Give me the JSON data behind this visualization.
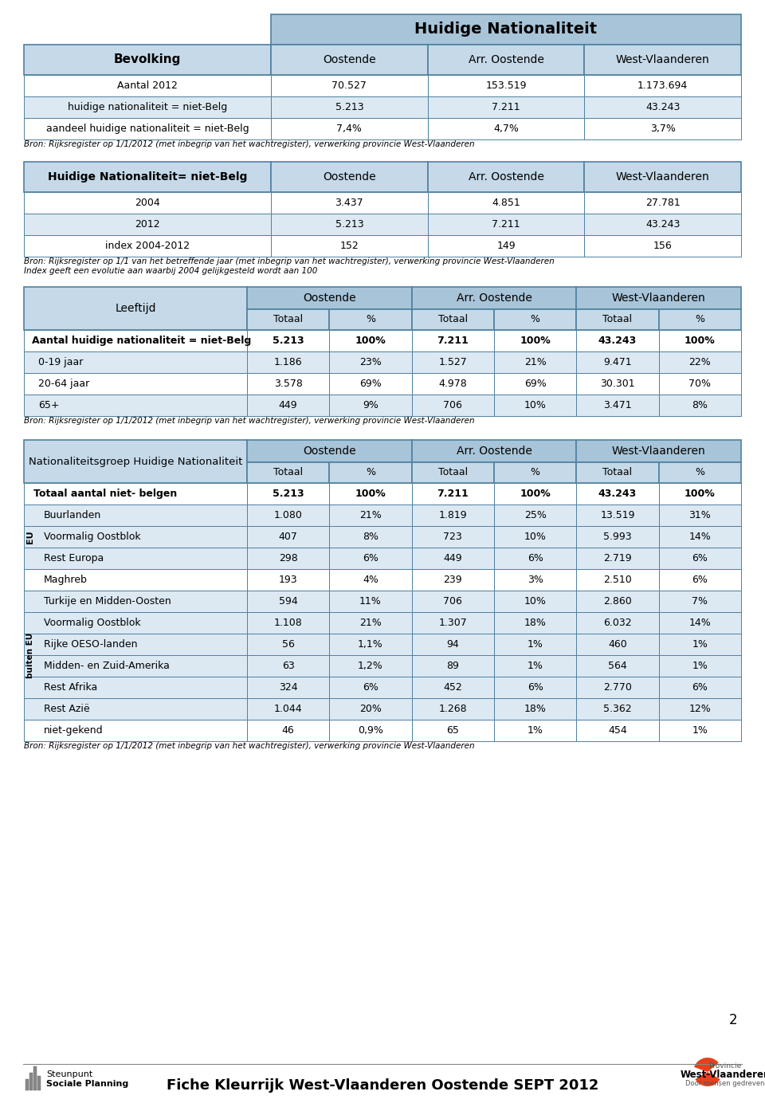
{
  "page_bg": "#ffffff",
  "header_bg": "#a8c4d8",
  "subheader_bg": "#c5d9e8",
  "row_bg_light": "#dce9f3",
  "row_bg_white": "#ffffff",
  "border_color": "#4f81a0",
  "main_title": "Huidige Nationaliteit",
  "table1_title": "Bevolking",
  "table1_cols": [
    "Oostende",
    "Arr. Oostende",
    "West-Vlaanderen"
  ],
  "table1_rows": [
    [
      "Aantal 2012",
      "70.527",
      "153.519",
      "1.173.694"
    ],
    [
      "huidige nationaliteit = niet-Belg",
      "5.213",
      "7.211",
      "43.243"
    ],
    [
      "aandeel huidige nationaliteit = niet-Belg",
      "7,4%",
      "4,7%",
      "3,7%"
    ]
  ],
  "table1_note": "Bron: Rijksregister op 1/1/2012 (met inbegrip van het wachtregister), verwerking provincie West-Vlaanderen",
  "table2_title": "Huidige Nationaliteit= niet-Belg",
  "table2_cols": [
    "Oostende",
    "Arr. Oostende",
    "West-Vlaanderen"
  ],
  "table2_rows": [
    [
      "2004",
      "3.437",
      "4.851",
      "27.781"
    ],
    [
      "2012",
      "5.213",
      "7.211",
      "43.243"
    ],
    [
      "index 2004-2012",
      "152",
      "149",
      "156"
    ]
  ],
  "table2_note": "Bron: Rijksregister op 1/1 van het betreffende jaar (met inbegrip van het wachtregister), verwerking provincie West-Vlaanderen",
  "table2_note2": "Index geeft een evolutie aan waarbij 2004 gelijkgesteld wordt aan 100",
  "table3_title": "Leeftijd",
  "table3_cols_top": [
    "Oostende",
    "Arr. Oostende",
    "West-Vlaanderen"
  ],
  "table3_cols_sub": [
    "Totaal",
    "%",
    "Totaal",
    "%",
    "Totaal",
    "%"
  ],
  "table3_rows": [
    [
      "Aantal huidige nationaliteit = niet-Belg",
      "5.213",
      "100%",
      "7.211",
      "100%",
      "43.243",
      "100%",
      "bold",
      "white"
    ],
    [
      "0-19 jaar",
      "1.186",
      "23%",
      "1.527",
      "21%",
      "9.471",
      "22%",
      "normal",
      "light"
    ],
    [
      "20-64 jaar",
      "3.578",
      "69%",
      "4.978",
      "69%",
      "30.301",
      "70%",
      "normal",
      "white"
    ],
    [
      "65+",
      "449",
      "9%",
      "706",
      "10%",
      "3.471",
      "8%",
      "normal",
      "light"
    ]
  ],
  "table3_note": "Bron: Rijksregister op 1/1/2012 (met inbegrip van het wachtregister), verwerking provincie West-Vlaanderen",
  "table4_title": "Nationaliteitsgroep Huidige Nationaliteit",
  "table4_cols_top": [
    "Oostende",
    "Arr. Oostende",
    "West-Vlaanderen"
  ],
  "table4_cols_sub": [
    "Totaal",
    "%",
    "Totaal",
    "%",
    "Totaal",
    "%"
  ],
  "table4_rows": [
    [
      "Totaal aantal niet- belgen",
      "5.213",
      "100%",
      "7.211",
      "100%",
      "43.243",
      "100%",
      "bold",
      "white"
    ],
    [
      "Buurlanden",
      "1.080",
      "21%",
      "1.819",
      "25%",
      "13.519",
      "31%",
      "normal",
      "light"
    ],
    [
      "Voormalig Oostblok",
      "407",
      "8%",
      "723",
      "10%",
      "5.993",
      "14%",
      "normal",
      "light"
    ],
    [
      "Rest Europa",
      "298",
      "6%",
      "449",
      "6%",
      "2.719",
      "6%",
      "normal",
      "light"
    ],
    [
      "Maghreb",
      "193",
      "4%",
      "239",
      "3%",
      "2.510",
      "6%",
      "normal",
      "white"
    ],
    [
      "Turkije en Midden-Oosten",
      "594",
      "11%",
      "706",
      "10%",
      "2.860",
      "7%",
      "normal",
      "light"
    ],
    [
      "Voormalig Oostblok",
      "1.108",
      "21%",
      "1.307",
      "18%",
      "6.032",
      "14%",
      "normal",
      "light"
    ],
    [
      "Rijke OESO-landen",
      "56",
      "1,1%",
      "94",
      "1%",
      "460",
      "1%",
      "normal",
      "light"
    ],
    [
      "Midden- en Zuid-Amerika",
      "63",
      "1,2%",
      "89",
      "1%",
      "564",
      "1%",
      "normal",
      "light"
    ],
    [
      "Rest Afrika",
      "324",
      "6%",
      "452",
      "6%",
      "2.770",
      "6%",
      "normal",
      "light"
    ],
    [
      "Rest Azië",
      "1.044",
      "20%",
      "1.268",
      "18%",
      "5.362",
      "12%",
      "normal",
      "light"
    ],
    [
      "niet-gekend",
      "46",
      "0,9%",
      "65",
      "1%",
      "454",
      "1%",
      "normal",
      "white"
    ]
  ],
  "table4_eu_rows": [
    1,
    2,
    3
  ],
  "table4_buiten_rows": [
    4,
    5,
    6,
    7,
    8,
    9,
    10,
    11
  ],
  "table4_eu_label": "EU",
  "table4_buiten_label": "buiten EU",
  "table4_note": "Bron: Rijksregister op 1/1/2012 (met inbegrip van het wachtregister), verwerking provincie West-Vlaanderen",
  "footer_text": "Fiche Kleurrijk West-Vlaanderen Oostende SEPT 2012",
  "page_number": "2"
}
